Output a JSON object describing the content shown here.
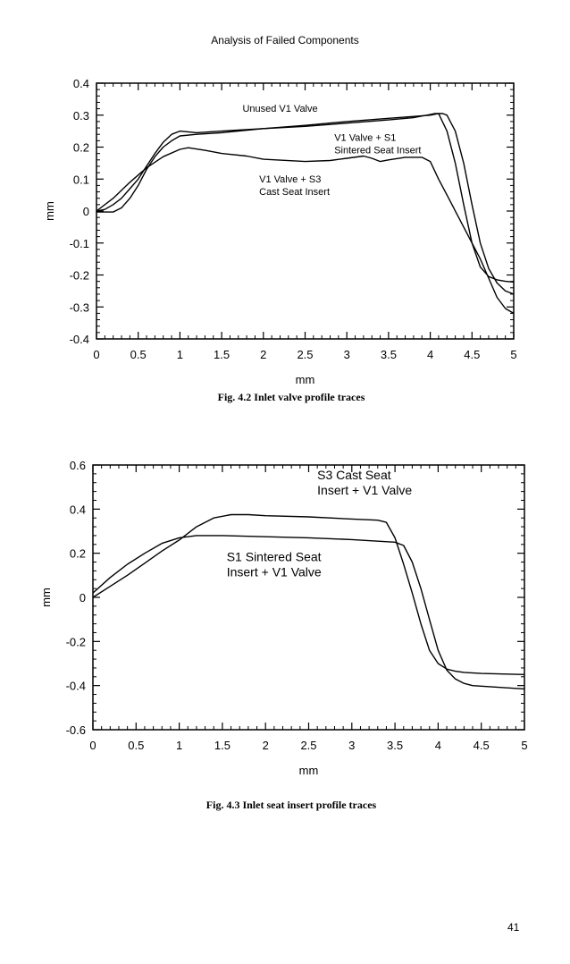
{
  "page_header": "Analysis of Failed Components",
  "page_number": "41",
  "captions": [
    "Fig. 4.2  Inlet valve profile traces",
    "Fig. 4.3  Inlet seat insert profile traces"
  ],
  "chart_data": [
    {
      "type": "line",
      "xlabel": "mm",
      "ylabel": "mm",
      "xlim": [
        0,
        5
      ],
      "ylim": [
        -0.4,
        0.4
      ],
      "xticks": [
        0,
        0.5,
        1,
        1.5,
        2,
        2.5,
        3,
        3.5,
        4,
        4.5,
        5
      ],
      "xtick_labels": [
        "0",
        "0.5",
        "1",
        "1.5",
        "2",
        "2.5",
        "3",
        "3.5",
        "4",
        "4.5",
        "5"
      ],
      "yticks": [
        0.4,
        0.3,
        0.2,
        0.1,
        0,
        -0.1,
        -0.2,
        -0.3,
        -0.4
      ],
      "ytick_labels": [
        "0.4",
        "0.3",
        "0.2",
        "0.1",
        "0",
        "-0.1",
        "-0.2",
        "-0.3",
        "-0.4"
      ],
      "grid": false,
      "series": [
        {
          "x": [
            0,
            0.1,
            0.2,
            0.3,
            0.4,
            0.5,
            0.6,
            0.7,
            0.8,
            0.9,
            1.0,
            1.2,
            1.5,
            2,
            2.5,
            3,
            3.5,
            3.8,
            4.0,
            4.05,
            4.1,
            4.2,
            4.3,
            4.4,
            4.5,
            4.6,
            4.7,
            4.8,
            4.9,
            5.0
          ],
          "y": [
            0,
            0.005,
            0.02,
            0.04,
            0.07,
            0.1,
            0.14,
            0.18,
            0.215,
            0.24,
            0.25,
            0.245,
            0.25,
            0.258,
            0.265,
            0.275,
            0.285,
            0.292,
            0.302,
            0.305,
            0.305,
            0.25,
            0.15,
            0.02,
            -0.1,
            -0.175,
            -0.205,
            -0.215,
            -0.22,
            -0.222
          ]
        },
        {
          "x": [
            0,
            0.2,
            0.3,
            0.4,
            0.5,
            0.6,
            0.7,
            0.8,
            0.9,
            1.0,
            1.2,
            1.5,
            2,
            2.5,
            3,
            3.5,
            4.0,
            4.1,
            4.15,
            4.2,
            4.3,
            4.4,
            4.5,
            4.6,
            4.7,
            4.8,
            4.9,
            5.0
          ],
          "y": [
            -0.003,
            -0.003,
            0.01,
            0.04,
            0.08,
            0.13,
            0.17,
            0.2,
            0.22,
            0.235,
            0.24,
            0.245,
            0.258,
            0.268,
            0.28,
            0.29,
            0.3,
            0.305,
            0.305,
            0.3,
            0.25,
            0.15,
            0.02,
            -0.1,
            -0.18,
            -0.225,
            -0.25,
            -0.26
          ]
        },
        {
          "x": [
            0,
            0.2,
            0.4,
            0.6,
            0.8,
            1.0,
            1.1,
            1.3,
            1.5,
            1.8,
            2.0,
            2.5,
            2.8,
            3.0,
            3.2,
            3.3,
            3.4,
            3.5,
            3.7,
            3.9,
            4.0,
            4.1,
            4.2,
            4.4,
            4.6,
            4.7,
            4.8,
            4.9,
            5.0
          ],
          "y": [
            0,
            0.04,
            0.09,
            0.135,
            0.17,
            0.193,
            0.198,
            0.19,
            0.18,
            0.172,
            0.162,
            0.155,
            0.158,
            0.165,
            0.172,
            0.165,
            0.155,
            0.16,
            0.168,
            0.168,
            0.155,
            0.1,
            0.05,
            -0.05,
            -0.15,
            -0.21,
            -0.27,
            -0.305,
            -0.32
          ]
        }
      ],
      "annotations": [
        {
          "lines": [
            "Unused V1 Valve"
          ],
          "x": 1.75,
          "y": 0.31
        },
        {
          "lines": [
            "V1 Valve + S1",
            "Sintered Seat Insert"
          ],
          "x": 2.85,
          "y": 0.22
        },
        {
          "lines": [
            "V1 Valve + S3",
            "Cast Seat Insert"
          ],
          "x": 1.95,
          "y": 0.09
        }
      ]
    },
    {
      "type": "line",
      "xlabel": "mm",
      "ylabel": "mm",
      "xlim": [
        0,
        5
      ],
      "ylim": [
        -0.6,
        0.6
      ],
      "xticks": [
        0,
        0.5,
        1,
        1.5,
        2,
        2.5,
        3,
        3.5,
        4,
        4.5,
        5
      ],
      "xtick_labels": [
        "0",
        "0.5",
        "1",
        "1.5",
        "2",
        "2.5",
        "3",
        "3.5",
        "4",
        "4.5",
        "5"
      ],
      "yticks": [
        0.6,
        0.4,
        0.2,
        0,
        -0.2,
        -0.4,
        -0.6
      ],
      "ytick_labels": [
        "0.6",
        "0.4",
        "0.2",
        "0",
        "-0.2",
        "-0.4",
        "-0.6"
      ],
      "grid": false,
      "series": [
        {
          "x": [
            0,
            0.2,
            0.4,
            0.6,
            0.8,
            1.0,
            1.2,
            1.4,
            1.6,
            1.8,
            2.0,
            2.5,
            3.0,
            3.3,
            3.4,
            3.5,
            3.6,
            3.7,
            3.8,
            3.9,
            4.0,
            4.1,
            4.2,
            4.3,
            4.5,
            5.0
          ],
          "y": [
            0,
            0.05,
            0.1,
            0.155,
            0.21,
            0.26,
            0.32,
            0.36,
            0.375,
            0.375,
            0.37,
            0.365,
            0.355,
            0.35,
            0.34,
            0.27,
            0.15,
            0.02,
            -0.12,
            -0.24,
            -0.3,
            -0.325,
            -0.335,
            -0.34,
            -0.345,
            -0.35
          ]
        },
        {
          "x": [
            0,
            0.2,
            0.4,
            0.6,
            0.8,
            1.0,
            1.2,
            1.5,
            2.0,
            2.5,
            3.0,
            3.5,
            3.6,
            3.7,
            3.8,
            3.9,
            4.0,
            4.1,
            4.2,
            4.3,
            4.4,
            4.6,
            5.0
          ],
          "y": [
            0.02,
            0.09,
            0.15,
            0.2,
            0.245,
            0.27,
            0.28,
            0.28,
            0.275,
            0.27,
            0.262,
            0.25,
            0.235,
            0.16,
            0.04,
            -0.1,
            -0.24,
            -0.33,
            -0.37,
            -0.39,
            -0.4,
            -0.405,
            -0.415
          ]
        }
      ],
      "annotations": [
        {
          "lines": [
            "S3 Cast Seat",
            "Insert + V1 Valve"
          ],
          "x": 2.6,
          "y": 0.535
        },
        {
          "lines": [
            "S1 Sintered Seat",
            "Insert + V1 Valve"
          ],
          "x": 1.55,
          "y": 0.165
        }
      ]
    }
  ]
}
